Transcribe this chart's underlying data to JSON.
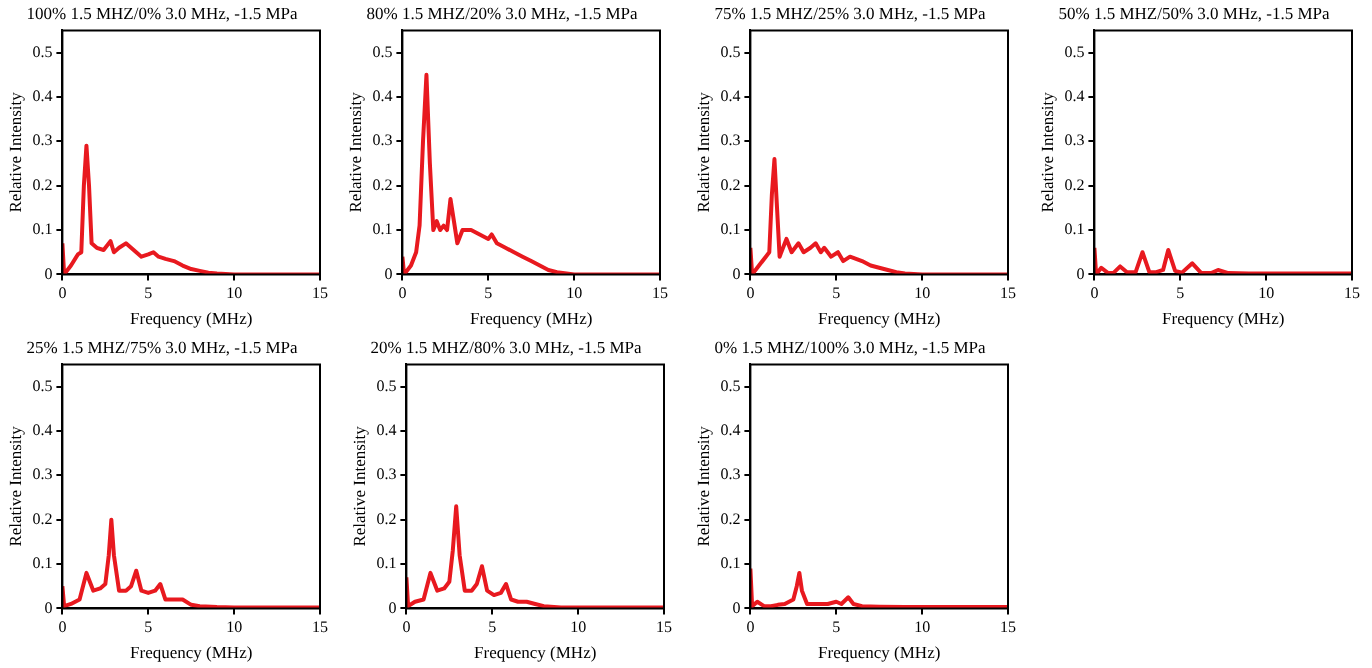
{
  "chart_data": [
    {
      "type": "line",
      "title": "100% 1.5 MHZ/0% 3.0 MHz, -1.5 MPa",
      "xlabel": "Frequency (MHz)",
      "ylabel": "Relative Intensity",
      "xlim": [
        0,
        15
      ],
      "xticks": [
        0,
        5,
        10,
        15
      ],
      "ylim": [
        0,
        0.55
      ],
      "yticks": [
        0,
        0.1,
        0.2,
        0.3,
        0.4,
        0.5
      ],
      "grid": false,
      "legend": false,
      "marker": "none",
      "series": [
        {
          "color": "#e8191f",
          "x": [
            0,
            0.1,
            0.5,
            0.9,
            1.1,
            1.25,
            1.4,
            1.55,
            1.7,
            2.0,
            2.4,
            2.8,
            3.0,
            3.3,
            3.7,
            4.0,
            4.3,
            4.6,
            5.0,
            5.3,
            5.6,
            6.0,
            6.5,
            7,
            7.5,
            8,
            8.5,
            9,
            10,
            11,
            12,
            13,
            15
          ],
          "values": [
            0.07,
            0,
            0.02,
            0.045,
            0.05,
            0.2,
            0.29,
            0.2,
            0.07,
            0.06,
            0.055,
            0.075,
            0.05,
            0.06,
            0.07,
            0.06,
            0.05,
            0.04,
            0.045,
            0.05,
            0.04,
            0.035,
            0.03,
            0.02,
            0.012,
            0.008,
            0.004,
            0.002,
            0,
            0,
            0,
            0,
            0
          ]
        }
      ]
    },
    {
      "type": "line",
      "title": "80% 1.5 MHZ/20% 3.0 MHz, -1.5 MPa",
      "xlabel": "Frequency (MHz)",
      "ylabel": "Relative Intensity",
      "xlim": [
        0,
        15
      ],
      "xticks": [
        0,
        5,
        10,
        15
      ],
      "ylim": [
        0,
        0.55
      ],
      "yticks": [
        0,
        0.1,
        0.2,
        0.3,
        0.4,
        0.5
      ],
      "grid": false,
      "legend": false,
      "marker": "none",
      "series": [
        {
          "color": "#e8191f",
          "x": [
            0,
            0.1,
            0.5,
            0.8,
            1.0,
            1.2,
            1.4,
            1.6,
            1.8,
            2.0,
            2.2,
            2.4,
            2.6,
            2.8,
            3.0,
            3.2,
            3.5,
            4.0,
            4.5,
            5.0,
            5.2,
            5.5,
            6.0,
            6.5,
            7,
            7.5,
            8,
            8.5,
            9,
            10,
            12,
            15
          ],
          "values": [
            0.04,
            0,
            0.02,
            0.05,
            0.11,
            0.3,
            0.45,
            0.25,
            0.1,
            0.12,
            0.1,
            0.11,
            0.1,
            0.17,
            0.12,
            0.07,
            0.1,
            0.1,
            0.09,
            0.08,
            0.09,
            0.07,
            0.06,
            0.05,
            0.04,
            0.03,
            0.02,
            0.01,
            0.005,
            0,
            0,
            0
          ]
        }
      ]
    },
    {
      "type": "line",
      "title": "75% 1.5 MHZ/25% 3.0 MHz, -1.5 MPa",
      "xlabel": "Frequency (MHz)",
      "ylabel": "Relative Intensity",
      "xlim": [
        0,
        15
      ],
      "xticks": [
        0,
        5,
        10,
        15
      ],
      "ylim": [
        0,
        0.55
      ],
      "yticks": [
        0,
        0.1,
        0.2,
        0.3,
        0.4,
        0.5
      ],
      "grid": false,
      "legend": false,
      "marker": "none",
      "series": [
        {
          "color": "#e8191f",
          "x": [
            0,
            0.1,
            0.5,
            0.9,
            1.1,
            1.25,
            1.4,
            1.55,
            1.7,
            1.9,
            2.1,
            2.4,
            2.8,
            3.1,
            3.5,
            3.8,
            4.1,
            4.3,
            4.7,
            5.1,
            5.4,
            5.8,
            6.5,
            7,
            7.5,
            8,
            8.5,
            9,
            10,
            12,
            15
          ],
          "values": [
            0.06,
            0,
            0.02,
            0.04,
            0.05,
            0.18,
            0.26,
            0.15,
            0.04,
            0.06,
            0.08,
            0.05,
            0.07,
            0.05,
            0.06,
            0.07,
            0.05,
            0.06,
            0.04,
            0.05,
            0.03,
            0.04,
            0.03,
            0.02,
            0.015,
            0.01,
            0.005,
            0.002,
            0,
            0,
            0
          ]
        }
      ]
    },
    {
      "type": "line",
      "title": "50% 1.5 MHZ/50% 3.0 MHz, -1.5 MPa",
      "xlabel": "Frequency (MHz)",
      "ylabel": "Relative Intensity",
      "xlim": [
        0,
        15
      ],
      "xticks": [
        0,
        5,
        10,
        15
      ],
      "ylim": [
        0,
        0.55
      ],
      "yticks": [
        0,
        0.1,
        0.2,
        0.3,
        0.4,
        0.5
      ],
      "grid": false,
      "legend": false,
      "marker": "none",
      "series": [
        {
          "color": "#e8191f",
          "x": [
            0,
            0.1,
            0.4,
            0.8,
            1.1,
            1.5,
            1.9,
            2.4,
            2.8,
            3.2,
            3.6,
            4.0,
            4.3,
            4.7,
            5.1,
            5.7,
            6.2,
            6.8,
            7.2,
            7.8,
            9,
            12,
            15
          ],
          "values": [
            0.06,
            0,
            0.015,
            0.003,
            0.003,
            0.018,
            0.005,
            0.005,
            0.05,
            0.005,
            0.005,
            0.01,
            0.055,
            0.008,
            0.004,
            0.025,
            0.004,
            0.003,
            0.01,
            0.003,
            0.002,
            0.002,
            0.002
          ]
        }
      ]
    },
    {
      "type": "line",
      "title": "25% 1.5 MHZ/75% 3.0 MHz, -1.5 MPa",
      "xlabel": "Frequency (MHz)",
      "ylabel": "Relative Intensity",
      "xlim": [
        0,
        15
      ],
      "xticks": [
        0,
        5,
        10,
        15
      ],
      "ylim": [
        0,
        0.55
      ],
      "yticks": [
        0,
        0.1,
        0.2,
        0.3,
        0.4,
        0.5
      ],
      "grid": false,
      "legend": false,
      "marker": "none",
      "series": [
        {
          "color": "#e8191f",
          "x": [
            0,
            0.1,
            0.5,
            1.0,
            1.4,
            1.8,
            2.2,
            2.5,
            2.7,
            2.85,
            3.0,
            3.3,
            3.7,
            4.0,
            4.3,
            4.6,
            5.0,
            5.4,
            5.7,
            6.0,
            6.5,
            7.0,
            7.5,
            8,
            9,
            10,
            12,
            15
          ],
          "values": [
            0.05,
            0.005,
            0.01,
            0.02,
            0.08,
            0.04,
            0.045,
            0.055,
            0.12,
            0.2,
            0.12,
            0.04,
            0.04,
            0.05,
            0.085,
            0.04,
            0.035,
            0.04,
            0.055,
            0.02,
            0.02,
            0.02,
            0.008,
            0.005,
            0.003,
            0.002,
            0.002,
            0.002
          ]
        }
      ]
    },
    {
      "type": "line",
      "title": "20% 1.5 MHZ/80% 3.0 MHz, -1.5 MPa",
      "xlabel": "Frequency (MHz)",
      "ylabel": "Relative Intensity",
      "xlim": [
        0,
        15
      ],
      "xticks": [
        0,
        5,
        10,
        15
      ],
      "ylim": [
        0,
        0.55
      ],
      "yticks": [
        0,
        0.1,
        0.2,
        0.3,
        0.4,
        0.5
      ],
      "grid": false,
      "legend": false,
      "marker": "none",
      "series": [
        {
          "color": "#e8191f",
          "x": [
            0,
            0.1,
            0.5,
            1.0,
            1.4,
            1.8,
            2.2,
            2.5,
            2.7,
            2.9,
            3.1,
            3.4,
            3.8,
            4.1,
            4.4,
            4.7,
            5.1,
            5.5,
            5.8,
            6.1,
            6.5,
            7.0,
            7.5,
            8,
            9,
            10,
            12,
            15
          ],
          "values": [
            0.07,
            0.005,
            0.015,
            0.02,
            0.08,
            0.04,
            0.045,
            0.06,
            0.13,
            0.23,
            0.12,
            0.04,
            0.04,
            0.055,
            0.095,
            0.04,
            0.03,
            0.035,
            0.055,
            0.02,
            0.015,
            0.015,
            0.01,
            0.005,
            0.002,
            0.002,
            0.002,
            0.002
          ]
        }
      ]
    },
    {
      "type": "line",
      "title": "0% 1.5 MHZ/100% 3.0 MHz, -1.5 MPa",
      "xlabel": "Frequency (MHz)",
      "ylabel": "Relative Intensity",
      "xlim": [
        0,
        15
      ],
      "xticks": [
        0,
        5,
        10,
        15
      ],
      "ylim": [
        0,
        0.55
      ],
      "yticks": [
        0,
        0.1,
        0.2,
        0.3,
        0.4,
        0.5
      ],
      "grid": false,
      "legend": false,
      "marker": "none",
      "series": [
        {
          "color": "#e8191f",
          "x": [
            0,
            0.1,
            0.4,
            0.8,
            1.2,
            1.6,
            2.0,
            2.5,
            2.7,
            2.85,
            3.0,
            3.3,
            3.8,
            4.5,
            5.0,
            5.3,
            5.7,
            6.0,
            6.5,
            7.5,
            9,
            12,
            15
          ],
          "values": [
            0.09,
            0.005,
            0.015,
            0.005,
            0.005,
            0.008,
            0.01,
            0.02,
            0.05,
            0.08,
            0.04,
            0.01,
            0.01,
            0.01,
            0.015,
            0.01,
            0.025,
            0.01,
            0.005,
            0.004,
            0.003,
            0.003,
            0.003
          ]
        }
      ]
    }
  ]
}
